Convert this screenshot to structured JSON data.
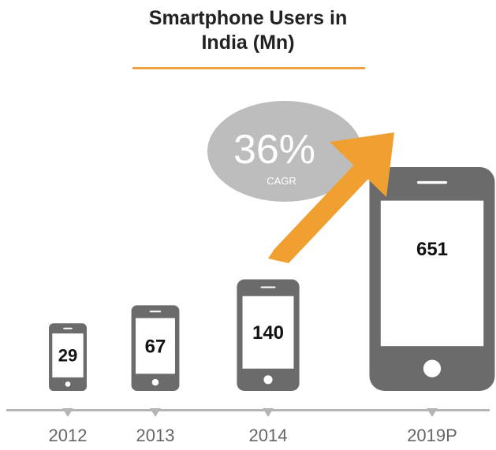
{
  "chart_data": {
    "type": "bar",
    "title": "Smartphone Users in India (Mn)",
    "title_lines": [
      "Smartphone Users in",
      "India (Mn)"
    ],
    "categories": [
      "2012",
      "2013",
      "2014",
      "2019P"
    ],
    "values": [
      29,
      67,
      140,
      651
    ],
    "annotation": {
      "value": "36%",
      "label": "CAGR"
    },
    "colors": {
      "device": "#6b6b6b",
      "accent": "#f0a030",
      "bubble": "#bdbdbd",
      "axis": "#b5b5b5",
      "label": "#666666"
    }
  }
}
